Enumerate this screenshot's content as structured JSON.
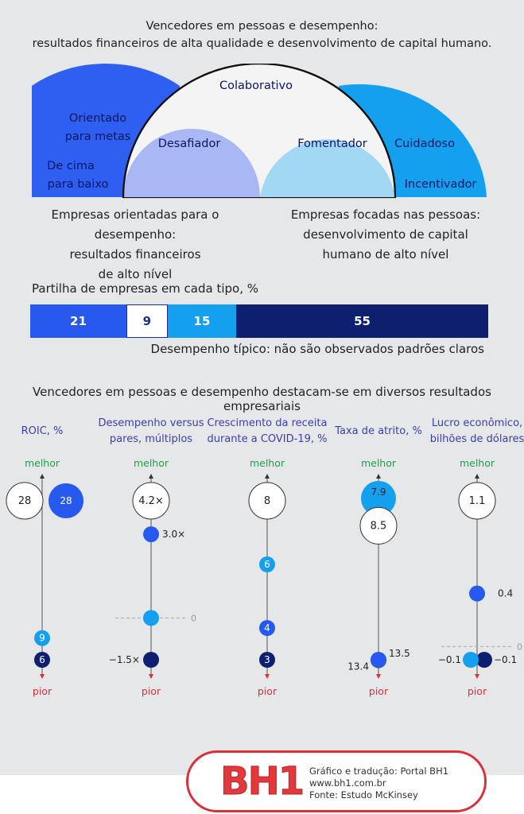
{
  "header": {
    "title_line1": "Vencedores em pessoas e desempenho:",
    "title_line2": "resultados financeiros de alta qualidade e desenvolvimento de capital humano."
  },
  "arch": {
    "outer_left_top_line1": "Orientado",
    "outer_left_top_line2": "para metas",
    "outer_left_bottom_line1": "De cima",
    "outer_left_bottom_line2": "para baixo",
    "inner_left": "Desafiador",
    "center": "Colaborativo",
    "inner_right": "Fomentador",
    "outer_right_top": "Cuidadoso",
    "outer_right_bottom": "Incentivador",
    "colors": {
      "outer_left": "#2f5ff0",
      "inner_left": "#aab7f5",
      "center": "#f4f4f4",
      "inner_right": "#a3d8f5",
      "outer_right": "#14a0ee"
    }
  },
  "captions": {
    "performance_line1": "Empresas orientadas para o desempenho:",
    "performance_line2": "resultados financeiros",
    "performance_line3": "de alto nível",
    "people_line1": "Empresas focadas nas pessoas:",
    "people_line2": "desenvolvimento de capital",
    "people_line3": "humano de alto nível"
  },
  "share": {
    "label": "Partilha de empresas em cada tipo, %",
    "segments": [
      {
        "value": 21,
        "label": "21",
        "color": "#2759ee",
        "text_color": "#ffffff"
      },
      {
        "value": 9,
        "label": "9",
        "color": "#ffffff",
        "text_color": "#1c2d8c"
      },
      {
        "value": 15,
        "label": "15",
        "color": "#14a0ee",
        "text_color": "#ffffff"
      },
      {
        "value": 55,
        "label": "55",
        "color": "#0d1f6e",
        "text_color": "#ffffff"
      }
    ],
    "typical_note": "Desempenho típico: não são observados padrões claros"
  },
  "outcomes": {
    "title": "Vencedores em pessoas e desempenho destacam-se em diversos resultados empresariais",
    "better_label": "melhor",
    "worse_label": "pior"
  },
  "chart_data": {
    "type": "scatter",
    "series_colors": {
      "winners": "#ffffff",
      "performance": "#2759ee",
      "people": "#14a0ee",
      "typical": "#0d1f6e"
    },
    "metrics": [
      {
        "title_line1": "ROIC, %",
        "title_line2": "",
        "values": {
          "winners": 28,
          "performance": 28,
          "people": 9,
          "typical": 6
        },
        "labels": {
          "winners": "28",
          "performance": "28",
          "people": "9",
          "typical": "6"
        },
        "zero_line": false,
        "zero_label": ""
      },
      {
        "title_line1": "Desempenho versus",
        "title_line2": "pares, múltiplos",
        "values": {
          "winners": 4.2,
          "performance": 3.0,
          "people": 0,
          "typical": -1.5
        },
        "labels": {
          "winners": "4.2×",
          "performance": "3.0×",
          "people": "",
          "typical": "−1.5×"
        },
        "zero_line": true,
        "zero_label": "0"
      },
      {
        "title_line1": "Crescimento da receita",
        "title_line2": "durante a COVID-19, %",
        "values": {
          "winners": 8,
          "performance": 4,
          "people": 6,
          "typical": 3
        },
        "labels": {
          "winners": "8",
          "performance": "4",
          "people": "6",
          "typical": "3"
        },
        "zero_line": false,
        "zero_label": ""
      },
      {
        "title_line1": "Taxa de atrito, %",
        "title_line2": "",
        "values": {
          "winners": 8.5,
          "performance": 13.5,
          "people": 7.9,
          "typical": 13.4
        },
        "labels": {
          "winners": "8.5",
          "performance": "13.5",
          "people": "7.9",
          "typical": "13.4"
        },
        "zero_line": false,
        "zero_label": ""
      },
      {
        "title_line1": "Lucro econômico,",
        "title_line2": "bilhões de dólares",
        "values": {
          "winners": 1.1,
          "performance": 0.4,
          "people": -0.1,
          "typical": -0.1
        },
        "labels": {
          "winners": "1.1",
          "performance": "0.4",
          "people": "−0.1",
          "typical": "−0.1"
        },
        "zero_line": true,
        "zero_label": "0"
      }
    ]
  },
  "footer": {
    "logo_text": "BH1",
    "line1": "Gráfico e tradução: Portal BH1",
    "line2": "www.bh1.com.br",
    "line3": "Fonte: Estudo McKinsey"
  }
}
